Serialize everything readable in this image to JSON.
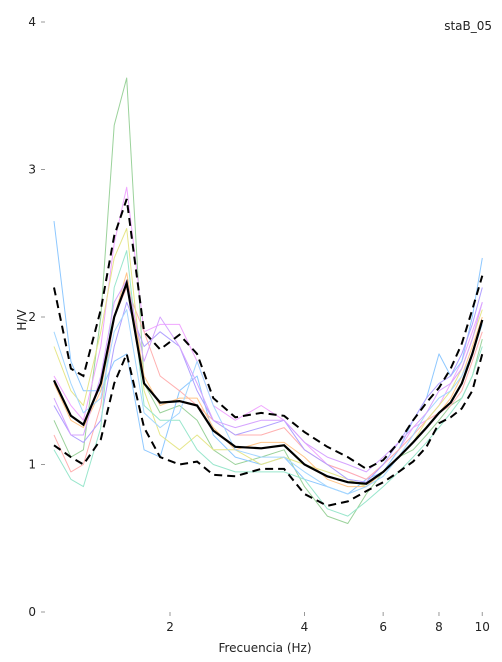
{
  "chart_data": {
    "type": "line",
    "title": "staB_05",
    "xlabel": "Frecuencia (Hz)",
    "ylabel": "H/V",
    "x_scale": "log",
    "xlim": [
      1.05,
      10.3
    ],
    "ylim": [
      0,
      4
    ],
    "x_ticks": [
      2,
      4,
      6,
      8,
      10
    ],
    "y_ticks": [
      0,
      1,
      2,
      3,
      4
    ],
    "grid": false,
    "x": [
      1.1,
      1.2,
      1.28,
      1.4,
      1.5,
      1.6,
      1.75,
      1.9,
      2.1,
      2.3,
      2.5,
      2.8,
      3.2,
      3.6,
      4.0,
      4.5,
      5.0,
      5.5,
      6.0,
      6.5,
      7.0,
      7.5,
      8.0,
      8.5,
      9.0,
      9.5,
      10.0
    ],
    "mean": [
      1.57,
      1.33,
      1.27,
      1.55,
      2.0,
      2.23,
      1.55,
      1.42,
      1.43,
      1.4,
      1.23,
      1.12,
      1.11,
      1.13,
      1.0,
      0.92,
      0.88,
      0.87,
      0.95,
      1.05,
      1.15,
      1.25,
      1.35,
      1.42,
      1.55,
      1.75,
      1.98
    ],
    "upper": [
      2.2,
      1.65,
      1.6,
      2.05,
      2.55,
      2.8,
      1.9,
      1.78,
      1.88,
      1.75,
      1.45,
      1.32,
      1.35,
      1.33,
      1.22,
      1.12,
      1.05,
      0.97,
      1.03,
      1.15,
      1.3,
      1.42,
      1.52,
      1.65,
      1.82,
      2.05,
      2.28
    ],
    "lower": [
      1.13,
      1.05,
      1.0,
      1.17,
      1.55,
      1.75,
      1.25,
      1.05,
      1.0,
      1.02,
      0.93,
      0.92,
      0.97,
      0.97,
      0.8,
      0.72,
      0.75,
      0.82,
      0.88,
      0.95,
      1.02,
      1.12,
      1.28,
      1.32,
      1.38,
      1.5,
      1.75
    ],
    "window_series": [
      {
        "color": "#9bd29b",
        "values": [
          1.3,
          1.05,
          1.1,
          2.0,
          3.3,
          3.62,
          1.55,
          1.35,
          1.4,
          1.3,
          1.1,
          1.0,
          1.05,
          1.1,
          0.85,
          0.65,
          0.6,
          0.8,
          0.95,
          1.05,
          1.1,
          1.2,
          1.3,
          1.4,
          1.45,
          1.6,
          1.85
        ]
      },
      {
        "color": "#f0a6ff",
        "values": [
          1.6,
          1.4,
          1.3,
          1.8,
          2.5,
          2.88,
          1.9,
          1.95,
          1.95,
          1.7,
          1.4,
          1.3,
          1.4,
          1.3,
          1.15,
          1.0,
          0.95,
          0.9,
          1.0,
          1.1,
          1.25,
          1.3,
          1.4,
          1.55,
          1.7,
          1.9,
          2.1
        ]
      },
      {
        "color": "#8ec8ff",
        "values": [
          2.65,
          1.7,
          1.5,
          1.5,
          1.7,
          1.75,
          1.1,
          1.05,
          1.5,
          1.6,
          1.2,
          1.05,
          1.0,
          1.05,
          0.9,
          0.85,
          0.8,
          0.9,
          0.95,
          1.1,
          1.3,
          1.45,
          1.75,
          1.6,
          1.7,
          2.0,
          2.4
        ]
      },
      {
        "color": "#ffb0b0",
        "values": [
          1.2,
          0.95,
          1.0,
          1.4,
          2.0,
          2.2,
          1.9,
          1.6,
          1.5,
          1.4,
          1.3,
          1.2,
          1.2,
          1.25,
          1.1,
          1.0,
          0.95,
          0.9,
          1.0,
          1.1,
          1.2,
          1.3,
          1.35,
          1.4,
          1.5,
          1.7,
          1.9
        ]
      },
      {
        "color": "#e6e68a",
        "values": [
          1.8,
          1.5,
          1.4,
          1.9,
          2.4,
          2.6,
          1.5,
          1.2,
          1.1,
          1.2,
          1.1,
          1.1,
          1.0,
          1.05,
          1.0,
          0.95,
          0.9,
          0.85,
          0.95,
          1.05,
          1.15,
          1.3,
          1.4,
          1.5,
          1.65,
          1.85,
          2.05
        ]
      },
      {
        "color": "#b0a0ff",
        "values": [
          1.4,
          1.2,
          1.15,
          1.3,
          1.8,
          2.1,
          1.8,
          1.9,
          1.8,
          1.5,
          1.3,
          1.2,
          1.25,
          1.3,
          1.1,
          1.0,
          0.9,
          0.88,
          1.0,
          1.15,
          1.3,
          1.45,
          1.55,
          1.6,
          1.75,
          1.95,
          2.2
        ]
      },
      {
        "color": "#99e6cc",
        "values": [
          1.1,
          0.9,
          0.85,
          1.25,
          2.2,
          2.45,
          1.4,
          1.3,
          1.3,
          1.1,
          1.0,
          0.95,
          0.95,
          0.95,
          0.9,
          0.7,
          0.65,
          0.75,
          0.85,
          0.95,
          1.05,
          1.15,
          1.25,
          1.35,
          1.45,
          1.6,
          1.8
        ]
      },
      {
        "color": "#ffc58a",
        "values": [
          1.55,
          1.3,
          1.25,
          1.5,
          2.0,
          2.3,
          1.6,
          1.4,
          1.45,
          1.45,
          1.25,
          1.1,
          1.15,
          1.15,
          1.05,
          0.9,
          0.85,
          0.85,
          0.95,
          1.05,
          1.15,
          1.25,
          1.35,
          1.45,
          1.6,
          1.8,
          2.0
        ]
      },
      {
        "color": "#a4d6ff",
        "values": [
          1.9,
          1.55,
          1.35,
          1.45,
          1.9,
          2.05,
          1.35,
          1.25,
          1.35,
          1.7,
          1.4,
          1.1,
          1.05,
          1.05,
          0.95,
          0.85,
          0.8,
          0.85,
          0.92,
          1.05,
          1.2,
          1.35,
          1.45,
          1.5,
          1.6,
          1.75,
          1.95
        ]
      },
      {
        "color": "#d6a4ff",
        "values": [
          1.45,
          1.2,
          1.2,
          1.6,
          2.1,
          2.25,
          1.7,
          2.0,
          1.8,
          1.55,
          1.3,
          1.25,
          1.3,
          1.3,
          1.15,
          1.05,
          1.0,
          0.95,
          1.05,
          1.15,
          1.25,
          1.35,
          1.5,
          1.55,
          1.65,
          1.85,
          2.1
        ]
      }
    ]
  }
}
